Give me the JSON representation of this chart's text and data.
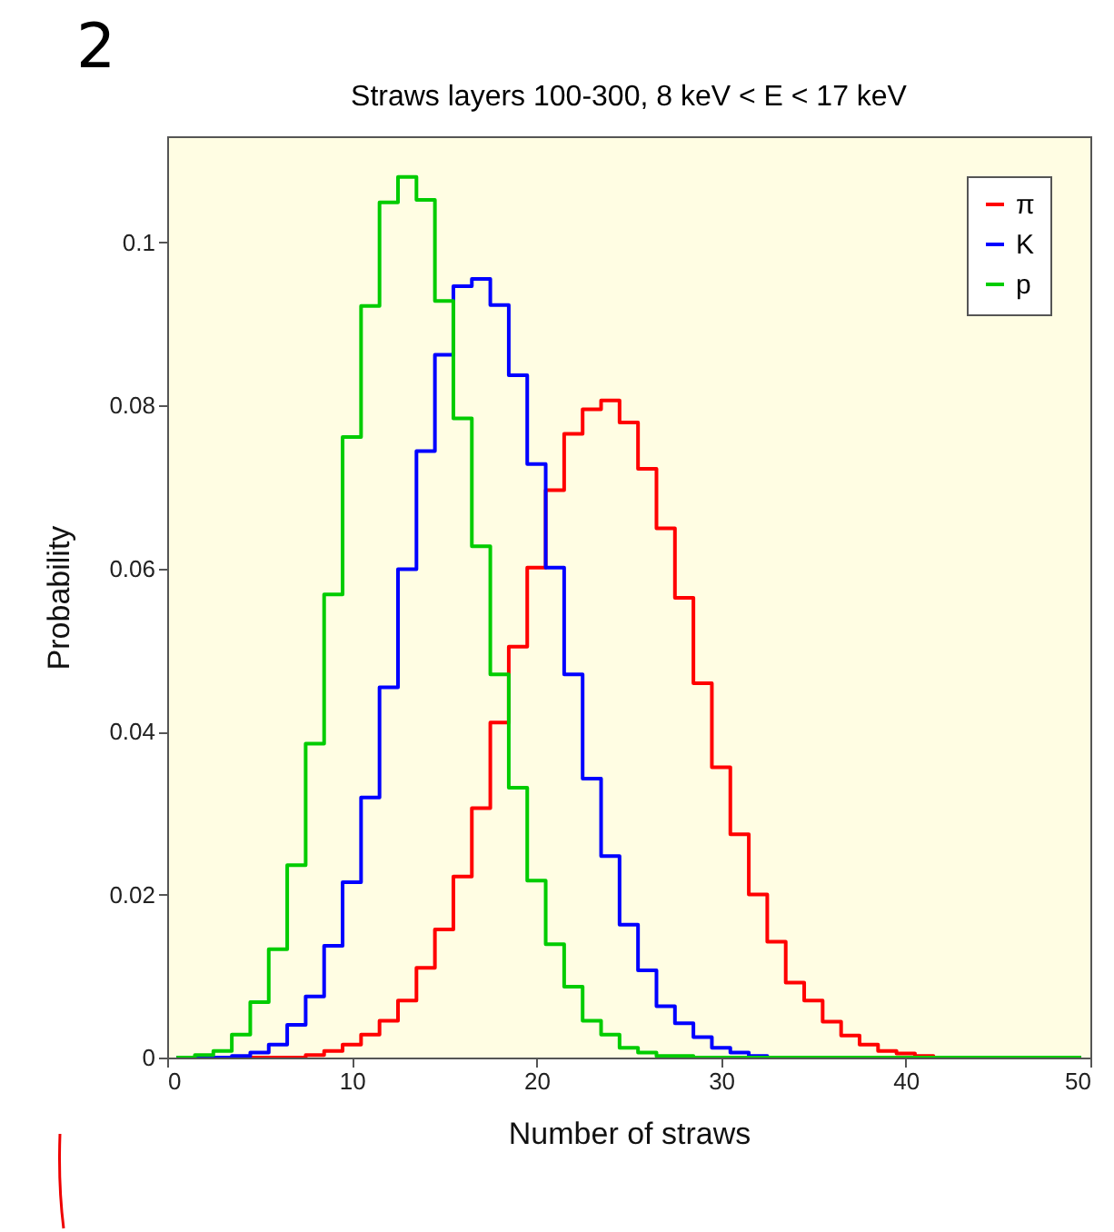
{
  "chart_data": {
    "type": "histogram",
    "title": "Straws layers 100-300, 8 keV <  E < 17 keV",
    "xlabel": "Number of straws",
    "ylabel": "Probability",
    "annotations": [
      "2"
    ],
    "bins": [
      0.5,
      1.5,
      2.5,
      3.5,
      4.5,
      5.5,
      6.5,
      7.5,
      8.5,
      9.5,
      10.5,
      11.5,
      12.5,
      13.5,
      14.5,
      15.5,
      16.5,
      17.5,
      18.5,
      19.5,
      20.5,
      21.5,
      22.5,
      23.5,
      24.5,
      25.5,
      26.5,
      27.5,
      28.5,
      29.5,
      30.5,
      31.5,
      32.5,
      33.5,
      34.5,
      35.5,
      36.5,
      37.5,
      38.5,
      39.5,
      40.5,
      41.5,
      42.5,
      43.5,
      44.5,
      45.5,
      46.5,
      47.5,
      48.5,
      49.5
    ],
    "series": [
      {
        "name": "π",
        "color": "#ff0000",
        "values": [
          0,
          0,
          0,
          0,
          0,
          0,
          0,
          0.0003,
          0.0008,
          0.0016,
          0.0028,
          0.0045,
          0.007,
          0.011,
          0.0157,
          0.0222,
          0.0306,
          0.0411,
          0.0504,
          0.0601,
          0.0696,
          0.0765,
          0.0795,
          0.0806,
          0.0779,
          0.0722,
          0.0649,
          0.0564,
          0.0459,
          0.0356,
          0.0274,
          0.02,
          0.0142,
          0.0092,
          0.007,
          0.0044,
          0.0027,
          0.0016,
          0.0008,
          0.0005,
          0.0002,
          0,
          0,
          0,
          0,
          0,
          0,
          0,
          0
        ]
      },
      {
        "name": "K",
        "color": "#0000ff",
        "values": [
          0,
          0,
          0,
          0.0002,
          0.0006,
          0.0016,
          0.004,
          0.0075,
          0.0137,
          0.0215,
          0.0319,
          0.0454,
          0.0599,
          0.0744,
          0.0862,
          0.0946,
          0.0955,
          0.0923,
          0.0837,
          0.0728,
          0.0601,
          0.047,
          0.0342,
          0.0247,
          0.0163,
          0.0107,
          0.0063,
          0.0042,
          0.0025,
          0.0012,
          0.0006,
          0.0002,
          0,
          0,
          0,
          0,
          0,
          0,
          0,
          0,
          0,
          0,
          0,
          0,
          0,
          0,
          0,
          0,
          0
        ]
      },
      {
        "name": "p",
        "color": "#00cc00",
        "values": [
          0,
          0.0003,
          0.0008,
          0.0028,
          0.0068,
          0.0133,
          0.0236,
          0.0385,
          0.0568,
          0.0761,
          0.0922,
          0.1049,
          0.108,
          0.1052,
          0.0928,
          0.0784,
          0.0627,
          0.047,
          0.0331,
          0.0217,
          0.0139,
          0.0087,
          0.0045,
          0.0028,
          0.0012,
          0.0006,
          0.0002,
          0.0002,
          0,
          0,
          0,
          0,
          0,
          0,
          0,
          0,
          0,
          0,
          0,
          0,
          0,
          0,
          0,
          0,
          0,
          0,
          0,
          0,
          0
        ]
      }
    ],
    "xlim": [
      0,
      50
    ],
    "xticks": [
      0,
      10,
      20,
      30,
      40,
      50
    ],
    "ylim": [
      0,
      0.113
    ],
    "yticks": [
      0,
      0.02,
      0.04,
      0.06,
      0.08,
      0.1
    ],
    "legend": "top right"
  }
}
